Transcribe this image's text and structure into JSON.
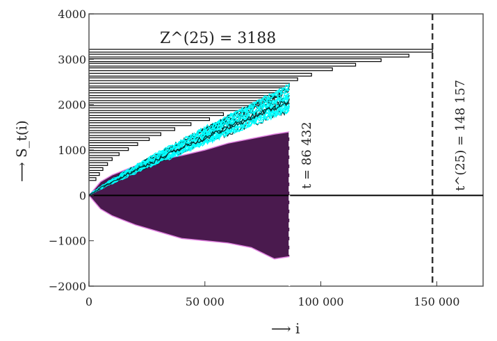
{
  "chart_data": {
    "type": "line",
    "title": "",
    "xlabel": "⟶ i",
    "ylabel": "⟶ S_t(i)",
    "xlim": [
      0,
      170000
    ],
    "ylim": [
      -2000,
      4000
    ],
    "x_ticks": [
      0,
      50000,
      100000,
      150000
    ],
    "x_tick_labels": [
      "0",
      "50 000",
      "100 000",
      "150 000"
    ],
    "y_ticks": [
      -2000,
      -1000,
      0,
      1000,
      2000,
      3000,
      4000
    ],
    "y_tick_labels": [
      "−2000",
      "−1000",
      "0",
      "1000",
      "2000",
      "3000",
      "4000"
    ],
    "grid": false,
    "annotations": {
      "z_label": "Z^(25) = 3188",
      "z_value": 3188,
      "t_label": "t = 86 432",
      "t_value": 86432,
      "t25_label": "t^(25) = 148 157",
      "t25_value": 148157
    },
    "horizontal_bars": {
      "levels": [
        3188,
        3080,
        2980,
        2880,
        2780,
        2660,
        2560,
        2440,
        2340,
        2230,
        2120,
        2010,
        1900,
        1790,
        1680,
        1570,
        1460,
        1350,
        1240,
        1130,
        1020,
        910,
        800,
        690,
        580,
        470,
        360
      ],
      "lengths": [
        148157,
        138000,
        126000,
        115000,
        105000,
        96000,
        90000,
        86432,
        84000,
        82000,
        80000,
        74000,
        66000,
        58000,
        52000,
        44000,
        37000,
        31000,
        26000,
        21000,
        17000,
        13000,
        10000,
        8000,
        6000,
        4500,
        3000
      ]
    },
    "envelope": {
      "x": [
        0,
        5000,
        10000,
        20000,
        30000,
        40000,
        50000,
        60000,
        70000,
        80000,
        86432
      ],
      "upper": [
        0,
        300,
        450,
        650,
        780,
        880,
        1000,
        1150,
        1250,
        1350,
        1400
      ],
      "lower": [
        0,
        -300,
        -450,
        -650,
        -800,
        -950,
        -1000,
        -1050,
        -1150,
        -1400,
        -1350
      ]
    },
    "walks": {
      "count": 25,
      "end_x": 86432,
      "end_range": [
        1900,
        2450
      ]
    },
    "colors": {
      "walks": "#00ffff",
      "envelope_line": "#e080e0",
      "envelope_fill": "#4a1a4e",
      "bars": "#000000"
    }
  }
}
